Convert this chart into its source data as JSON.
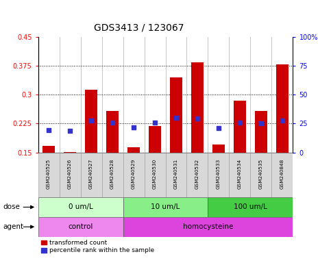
{
  "title": "GDS3413 / 123067",
  "samples": [
    "GSM240525",
    "GSM240526",
    "GSM240527",
    "GSM240528",
    "GSM240529",
    "GSM240530",
    "GSM240531",
    "GSM240532",
    "GSM240533",
    "GSM240534",
    "GSM240535",
    "GSM240848"
  ],
  "bar_values": [
    0.168,
    0.152,
    0.313,
    0.258,
    0.163,
    0.218,
    0.345,
    0.384,
    0.17,
    0.285,
    0.258,
    0.378
  ],
  "percentile_values": [
    19.5,
    19.0,
    27.5,
    26.0,
    21.5,
    26.0,
    30.0,
    29.5,
    21.0,
    26.0,
    25.0,
    27.5
  ],
  "bar_color": "#cc0000",
  "dot_color": "#3333cc",
  "ylim_left": [
    0.15,
    0.45
  ],
  "ylim_right": [
    0,
    100
  ],
  "yticks_left": [
    0.15,
    0.225,
    0.3,
    0.375,
    0.45
  ],
  "ytick_labels_left": [
    "0.15",
    "0.225",
    "0.3",
    "0.375",
    "0.45"
  ],
  "yticks_right": [
    0,
    25,
    50,
    75,
    100
  ],
  "ytick_labels_right": [
    "0",
    "25",
    "50",
    "75",
    "100%"
  ],
  "dose_groups": [
    {
      "label": "0 um/L",
      "start": 0,
      "end": 4,
      "color": "#ccffcc"
    },
    {
      "label": "10 um/L",
      "start": 4,
      "end": 8,
      "color": "#88ee88"
    },
    {
      "label": "100 um/L",
      "start": 8,
      "end": 12,
      "color": "#44cc44"
    }
  ],
  "agent_groups": [
    {
      "label": "control",
      "start": 0,
      "end": 4,
      "color": "#ee88ee"
    },
    {
      "label": "homocysteine",
      "start": 4,
      "end": 12,
      "color": "#dd44dd"
    }
  ],
  "dose_label": "dose",
  "agent_label": "agent",
  "legend_bar_label": "transformed count",
  "legend_dot_label": "percentile rank within the sample",
  "title_fontsize": 10,
  "tick_fontsize": 7,
  "label_fontsize": 7,
  "row_fontsize": 7.5,
  "bar_width": 0.6
}
